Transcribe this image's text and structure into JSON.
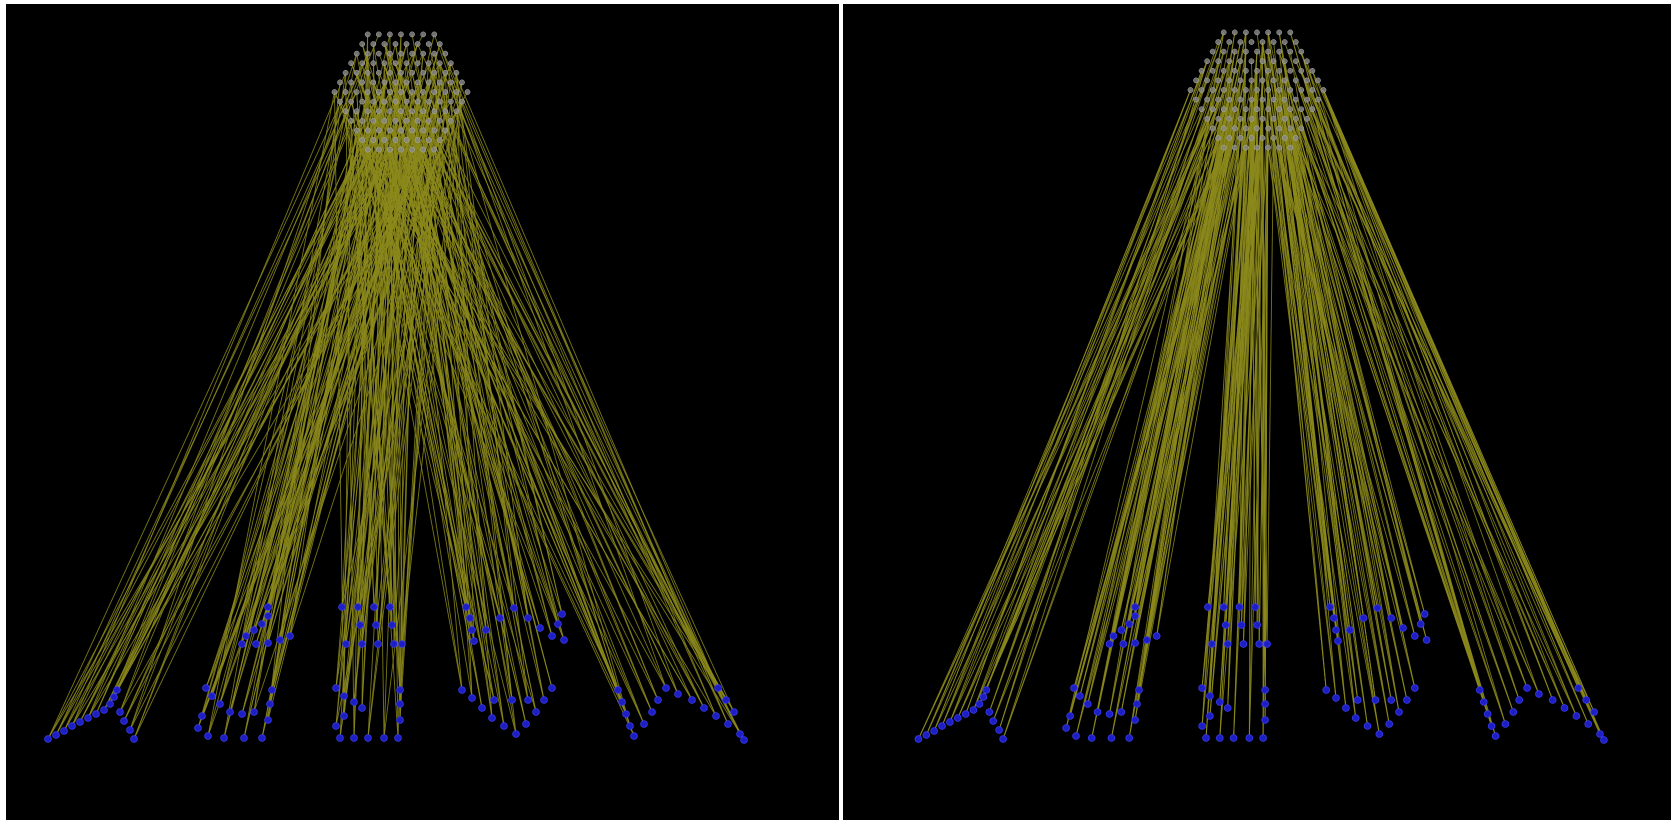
{
  "colors": {
    "background": "#000000",
    "edge": "#8c8a1c",
    "source_node": "#8a8a8a",
    "target_node": "#1d1fc4",
    "target_node_stroke": "#3a3cf0",
    "divider": "#ffffff"
  },
  "icons": {
    "source_nodes": "gray-circle-node",
    "target_nodes": "blue-circle-node"
  },
  "panels": [
    {
      "id": "left",
      "edge_routing": "crossed"
    },
    {
      "id": "right",
      "edge_routing": "ordered"
    }
  ],
  "graph": {
    "source_layout": "hexagon",
    "source_rings": 6,
    "target_groups": 10,
    "edges_per_target": 3
  }
}
